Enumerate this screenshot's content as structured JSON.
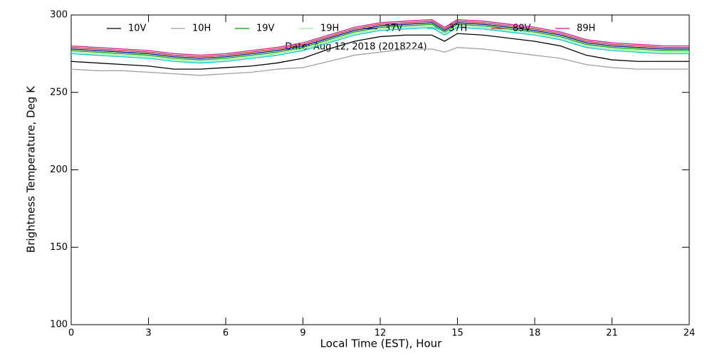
{
  "chart_data": {
    "type": "line",
    "annotation": "Date: Aug 12, 2018 (2018224)",
    "x_label": "Local Time (EST), Hour",
    "y_label": "Brightness Temperature, Deg K",
    "x": [
      0,
      1,
      2,
      3,
      4,
      5,
      6,
      7,
      8,
      9,
      10,
      11,
      12,
      13,
      14,
      14.5,
      15,
      16,
      17,
      18,
      19,
      20,
      21,
      22,
      23,
      24
    ],
    "xlim": [
      0,
      24
    ],
    "xticks": [
      0,
      3,
      6,
      9,
      12,
      15,
      18,
      21,
      24
    ],
    "ylim": [
      100,
      300
    ],
    "yticks": [
      100,
      150,
      200,
      250,
      300
    ],
    "series": [
      {
        "name": "10V",
        "color": "#000000",
        "values": [
          270,
          269,
          268,
          267,
          265,
          265,
          266,
          267,
          269,
          272,
          278,
          283,
          286,
          287,
          287,
          283,
          288,
          287,
          285,
          283,
          280,
          274,
          271,
          270,
          270,
          270
        ]
      },
      {
        "name": "10H",
        "color": "#a0a0a0",
        "values": [
          265,
          264,
          264,
          263,
          262,
          261,
          262,
          263,
          265,
          266,
          270,
          274,
          276,
          278,
          278,
          276,
          279,
          278,
          276,
          274,
          272,
          268,
          266,
          265,
          265,
          265
        ]
      },
      {
        "name": "19V",
        "color": "#00a000",
        "values": [
          277,
          276,
          275,
          274,
          272,
          271,
          272,
          274,
          276,
          279,
          284,
          289,
          292,
          293,
          294,
          289,
          294,
          293,
          291,
          289,
          286,
          281,
          279,
          278,
          277,
          277
        ]
      },
      {
        "name": "19H",
        "color": "#90ee90",
        "values": [
          276,
          275,
          274,
          273,
          271,
          270,
          271,
          273,
          275,
          278,
          283,
          288,
          291,
          292,
          293,
          288,
          293,
          292,
          290,
          288,
          285,
          280,
          278,
          277,
          276,
          276
        ]
      },
      {
        "name": "37V",
        "color": "#000080",
        "values": [
          278,
          277,
          276,
          275,
          273,
          272,
          273,
          275,
          277,
          280,
          285,
          290,
          293,
          294,
          295,
          290,
          295,
          294,
          292,
          290,
          287,
          282,
          280,
          279,
          278,
          278
        ]
      },
      {
        "name": "37H",
        "color": "#00c8c8",
        "values": [
          275,
          274,
          273,
          272,
          270,
          269,
          270,
          272,
          274,
          277,
          282,
          287,
          290,
          291,
          292,
          287,
          292,
          291,
          289,
          287,
          284,
          279,
          277,
          276,
          275,
          275
        ]
      },
      {
        "name": "89V",
        "color": "#b03030",
        "values": [
          279,
          278,
          277,
          276,
          274,
          273,
          274,
          276,
          278,
          281,
          286,
          291,
          294,
          295,
          296,
          291,
          296,
          295,
          293,
          291,
          288,
          283,
          281,
          280,
          279,
          279
        ]
      },
      {
        "name": "89H",
        "color": "#e01090",
        "values": [
          280,
          279,
          278,
          277,
          275,
          274,
          275,
          277,
          279,
          282,
          287,
          292,
          295,
          296,
          297,
          292,
          297,
          296,
          294,
          292,
          289,
          284,
          282,
          281,
          280,
          280
        ]
      }
    ]
  }
}
